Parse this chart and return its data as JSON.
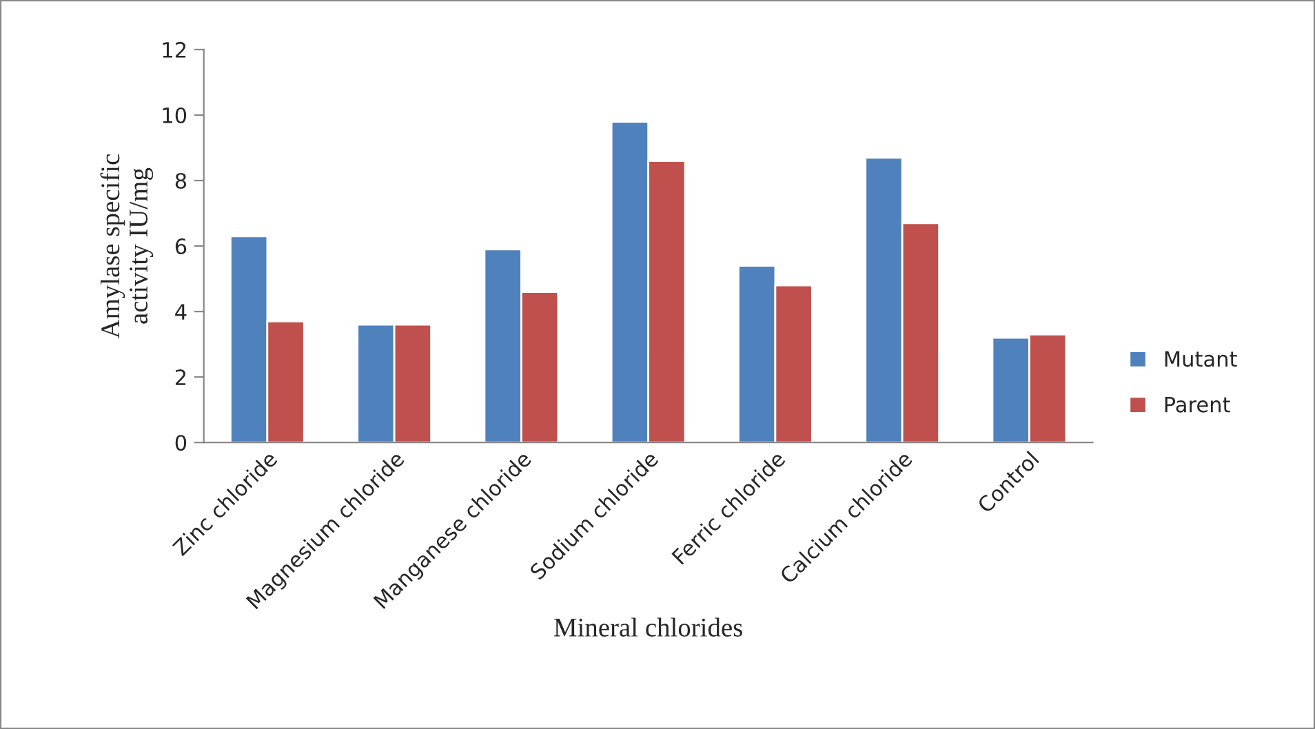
{
  "chart_data": {
    "type": "bar",
    "xlabel": "Mineral chlorides",
    "ylabel": "Amylase specific\nactivity IU/mg",
    "categories": [
      "Zinc chloride",
      "Magnesium chloride",
      "Manganese chloride",
      "Sodium chloride",
      "Ferric chloride",
      "Calcium chloride",
      "Control"
    ],
    "series": [
      {
        "name": "Mutant",
        "color": "#4f81bd",
        "values": [
          6.3,
          3.6,
          5.9,
          9.8,
          5.4,
          8.7,
          3.2
        ]
      },
      {
        "name": "Parent",
        "color": "#c0504d",
        "values": [
          3.7,
          3.6,
          4.6,
          8.6,
          4.8,
          6.7,
          3.3
        ]
      }
    ],
    "ylim": [
      0,
      12
    ],
    "yticks": [
      0,
      2,
      4,
      6,
      8,
      10,
      12
    ],
    "grid": false,
    "legend": "right"
  }
}
